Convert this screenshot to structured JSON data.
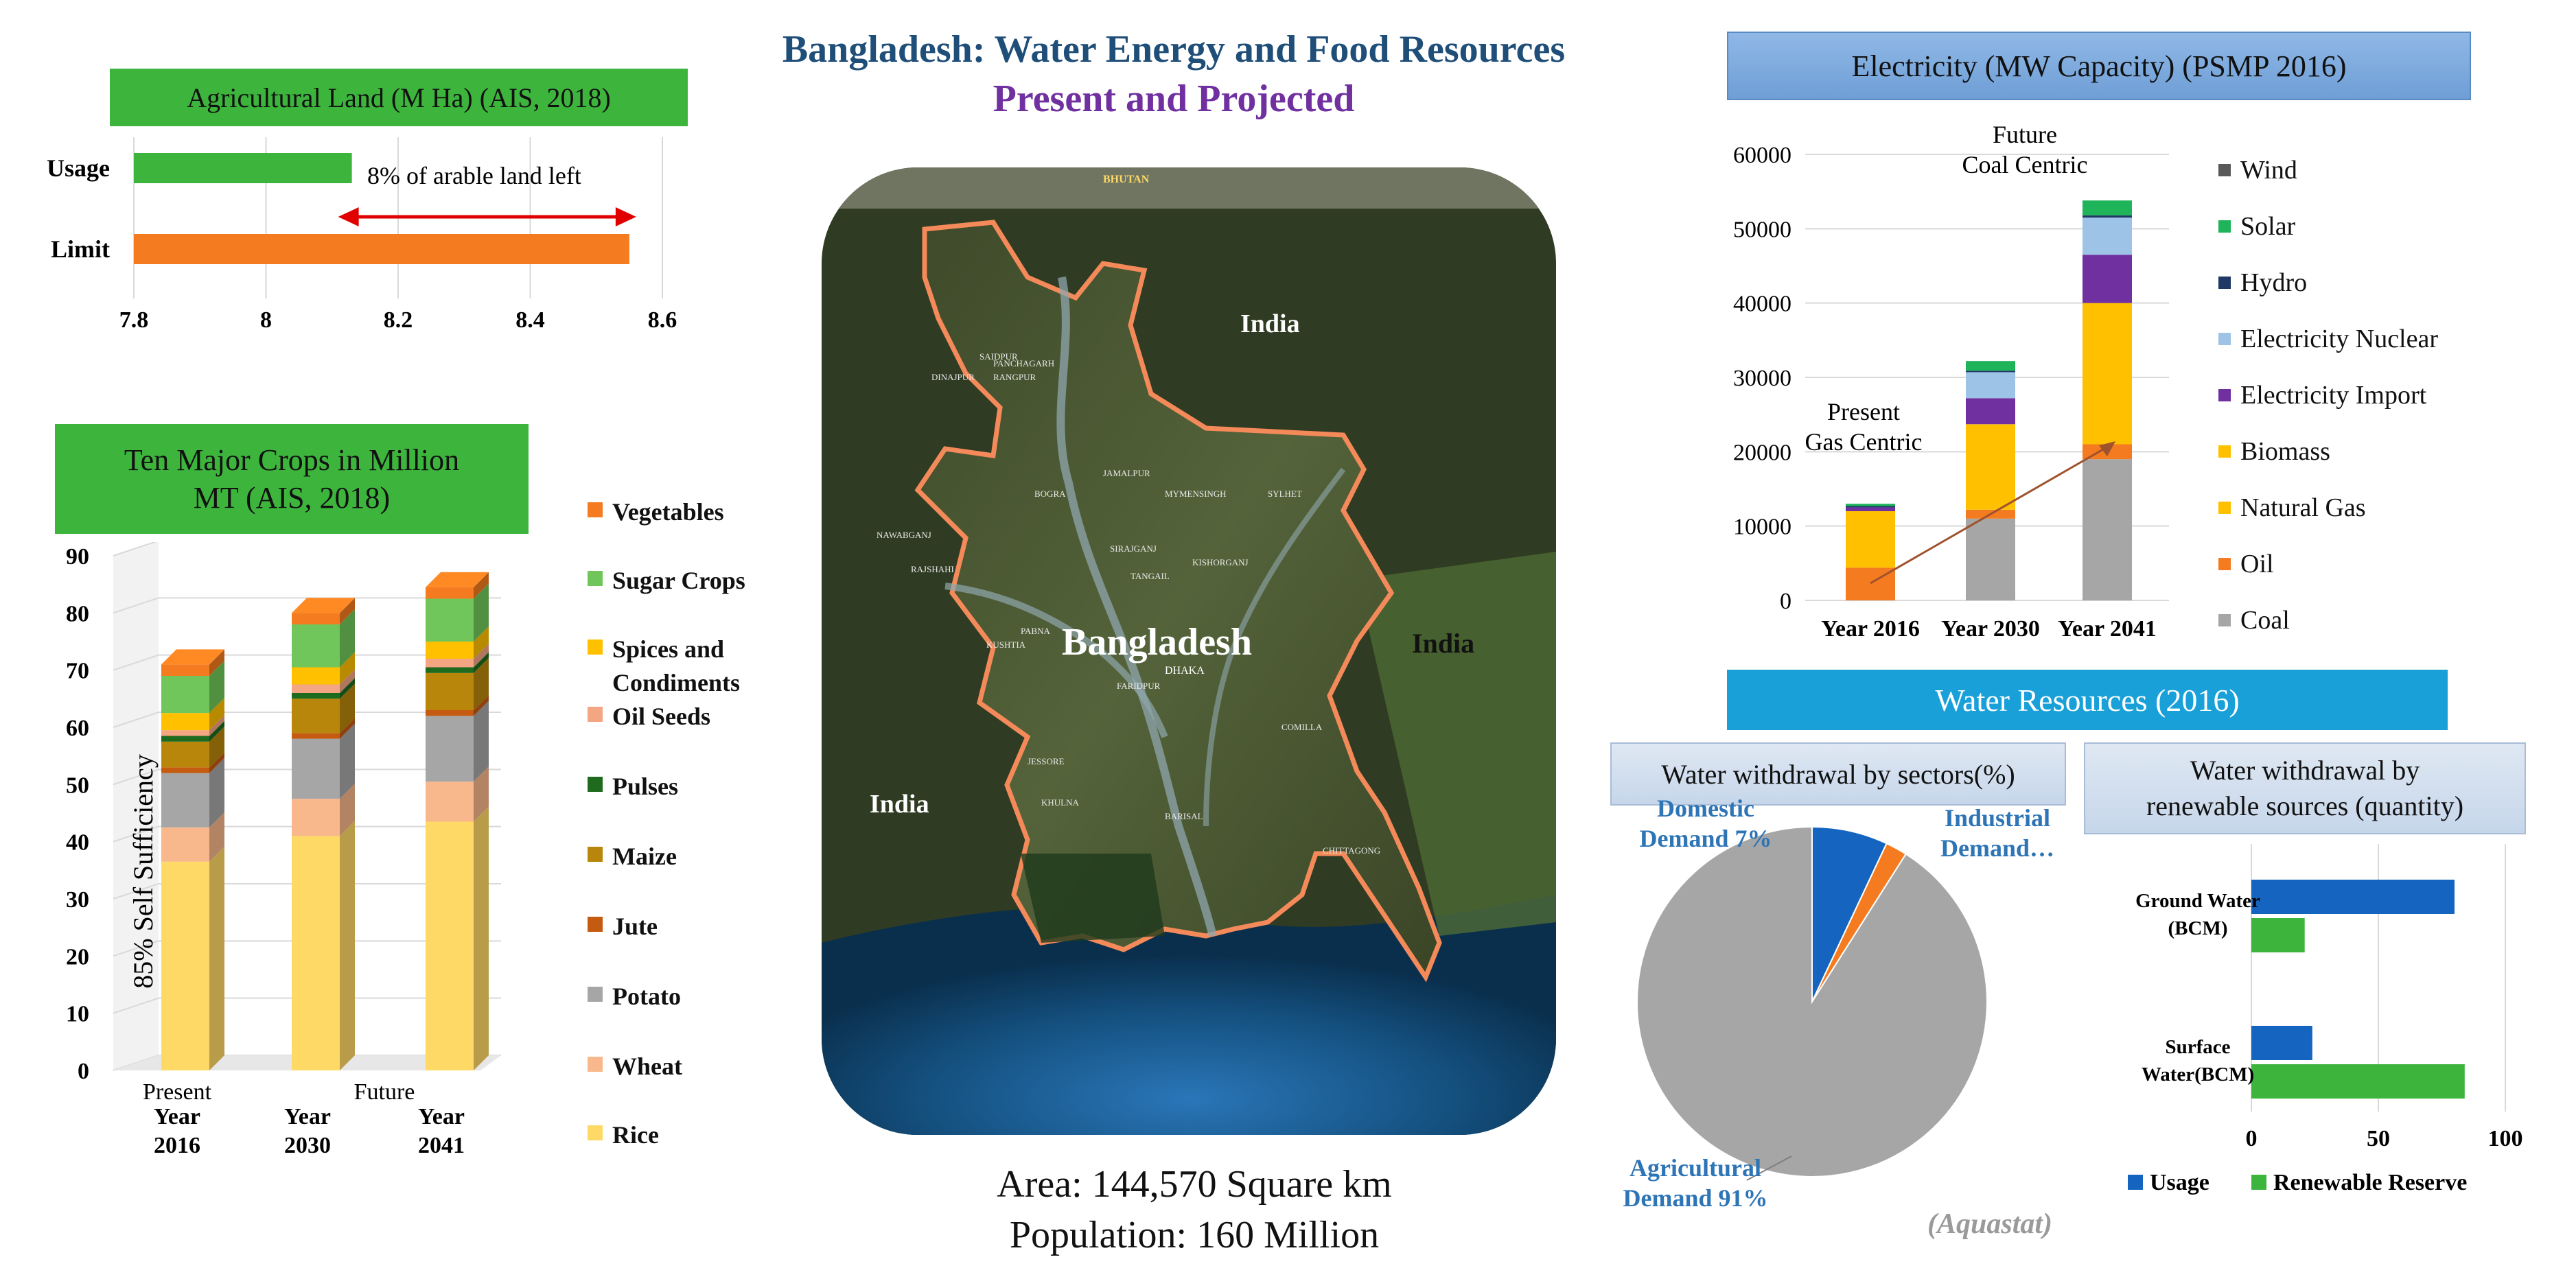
{
  "header": {
    "title": "Bangladesh: Water Energy and Food Resources",
    "subtitle": "Present and Projected",
    "title_color": "#1f4e79",
    "subtitle_color": "#7030a0"
  },
  "map": {
    "labels": {
      "india_north": "India",
      "india_east": "India",
      "india_west": "India",
      "bangladesh": "Bangladesh",
      "bhutan": "BHUTAN",
      "dhaka": "DHAKA",
      "cities": [
        "SAIDPUR",
        "PANCHAGARH",
        "RANGPUR",
        "DINAJPUR",
        "BOGRA",
        "JAMALPUR",
        "MYMENSINGH",
        "SYLHET",
        "SIRAJGANJ",
        "TANGAIL",
        "NAWABGANJ",
        "RAJSHAHI",
        "KISHORGANJ",
        "PABNA",
        "KUSHTIA",
        "COMILLA",
        "JESSORE",
        "KHULNA",
        "BARISAL",
        "CHITTAGONG",
        "FARIDPUR"
      ]
    },
    "area": "Area: 144,570 Square km",
    "population": "Population: 160 Million"
  },
  "agri_land": {
    "title": "Agricultural Land (M Ha) (AIS, 2018)",
    "annotation": "8% of arable land left"
  },
  "crops": {
    "title_line1": "Ten Major Crops in Million",
    "title_line2": "MT (AIS, 2018)",
    "self_sufficiency": "85% Self Sufficiency",
    "present_label": "Present",
    "future_label": "Future"
  },
  "electricity": {
    "title": "Electricity  (MW Capacity)  (PSMP 2016)",
    "present_note_line1": "Present",
    "present_note_line2": "Gas Centric",
    "future_note_line1": "Future",
    "future_note_line2": "Coal Centric"
  },
  "water": {
    "title": "Water Resources  (2016)",
    "pie_title": "Water withdrawal by sectors(%)",
    "bar_title_line1": "Water withdrawal by",
    "bar_title_line2": "renewable sources (quantity)",
    "source": "(Aquastat)",
    "label_domestic_line1": "Domestic",
    "label_domestic_line2": "Demand 7%",
    "label_industrial_line1": "Industrial",
    "label_industrial_line2": "Demand…",
    "label_agri_line1": "Agricultural",
    "label_agri_line2": "Demand 91%"
  },
  "chart_data": [
    {
      "id": "agri_land",
      "type": "bar",
      "orientation": "horizontal",
      "title": "Agricultural Land (M Ha) (AIS, 2018)",
      "categories": [
        "Usage",
        "Limit"
      ],
      "values": [
        8.13,
        8.55
      ],
      "colors": [
        "#3db53d",
        "#f47b20"
      ],
      "xlim": [
        7.8,
        8.6
      ],
      "x_ticks": [
        "7.8",
        "8",
        "8.2",
        "8.4",
        "8.6"
      ],
      "grid": true
    },
    {
      "id": "crops",
      "type": "bar",
      "stacked": true,
      "title": "Ten Major Crops in Million MT (AIS, 2018)",
      "categories": [
        [
          "Year",
          "2016"
        ],
        [
          "Year",
          "2030"
        ],
        [
          "Year",
          "2041"
        ]
      ],
      "ylabel": "",
      "ylim": [
        0,
        90
      ],
      "y_ticks": [
        "0",
        "10",
        "20",
        "30",
        "40",
        "50",
        "60",
        "70",
        "80",
        "90"
      ],
      "series": [
        {
          "name": "Rice",
          "color": "#ffd966",
          "values": [
            36.5,
            41,
            43.5
          ]
        },
        {
          "name": "Wheat",
          "color": "#f8b88b",
          "values": [
            6,
            6.5,
            7
          ]
        },
        {
          "name": "Potato",
          "color": "#a6a6a6",
          "values": [
            9.5,
            10.5,
            11.5
          ]
        },
        {
          "name": "Jute",
          "color": "#c55a11",
          "values": [
            1,
            1,
            1
          ]
        },
        {
          "name": "Maize",
          "color": "#b8860b",
          "values": [
            4.5,
            6,
            6.5
          ]
        },
        {
          "name": "Pulses",
          "color": "#1e6b1e",
          "values": [
            1,
            1,
            1
          ]
        },
        {
          "name": "Oil Seeds",
          "color": "#f4a582",
          "values": [
            1,
            1.5,
            1.5
          ]
        },
        {
          "name": "Spices and Condiments",
          "color": "#ffc000",
          "values": [
            3,
            3,
            3
          ]
        },
        {
          "name": "Sugar Crops",
          "color": "#70c65a",
          "values": [
            6.5,
            7.5,
            7.5
          ]
        },
        {
          "name": "Vegetables",
          "color": "#f47b20",
          "values": [
            2,
            2,
            2
          ]
        }
      ],
      "legend_position": "right"
    },
    {
      "id": "electricity",
      "type": "bar",
      "stacked": true,
      "title": "Electricity  (MW Capacity)  (PSMP 2016)",
      "categories": [
        "Year 2016",
        "Year 2030",
        "Year 2041"
      ],
      "ylim": [
        0,
        60000
      ],
      "y_ticks": [
        "0",
        "10000",
        "20000",
        "30000",
        "40000",
        "50000",
        "60000"
      ],
      "series": [
        {
          "name": "Coal",
          "color": "#a6a6a6",
          "values": [
            0,
            11000,
            19000
          ]
        },
        {
          "name": "Oil",
          "color": "#f47b20",
          "values": [
            4400,
            1200,
            2000
          ]
        },
        {
          "name": "Natural Gas",
          "color": "#ffc000",
          "values": [
            7600,
            11500,
            19000
          ]
        },
        {
          "name": "Biomass",
          "color": "#ffc000",
          "values": [
            0,
            0,
            0
          ]
        },
        {
          "name": "Electricity Import",
          "color": "#7030a0",
          "values": [
            500,
            3500,
            6500
          ]
        },
        {
          "name": "Electricity Nuclear",
          "color": "#9dc3e6",
          "values": [
            0,
            3500,
            5000
          ]
        },
        {
          "name": "Hydro",
          "color": "#1f3864",
          "values": [
            200,
            200,
            300
          ]
        },
        {
          "name": "Solar",
          "color": "#1fb45a",
          "values": [
            300,
            1300,
            2000
          ]
        },
        {
          "name": "Wind",
          "color": "#595959",
          "values": [
            0,
            0,
            0
          ]
        }
      ],
      "legend_position": "right"
    },
    {
      "id": "water_pie",
      "type": "pie",
      "title": "Water withdrawal by sectors(%)",
      "labels": [
        "Domestic Demand",
        "Industrial Demand",
        "Agricultural Demand"
      ],
      "values": [
        7,
        2,
        91
      ],
      "colors": [
        "#1565c0",
        "#f47b20",
        "#a6a6a6"
      ]
    },
    {
      "id": "water_bar",
      "type": "bar",
      "orientation": "horizontal",
      "title": "Water withdrawal by renewable sources (quantity)",
      "categories": [
        [
          "Ground Water",
          "(BCM)"
        ],
        [
          "Surface",
          "Water(BCM)"
        ]
      ],
      "xlim": [
        0,
        100
      ],
      "x_ticks": [
        "0",
        "50",
        "100"
      ],
      "series": [
        {
          "name": "Usage",
          "color": "#1565c0",
          "values": [
            80,
            24
          ]
        },
        {
          "name": "Renewable Reserve",
          "color": "#3db53d",
          "values": [
            21,
            84
          ]
        }
      ],
      "legend_position": "bottom"
    }
  ]
}
